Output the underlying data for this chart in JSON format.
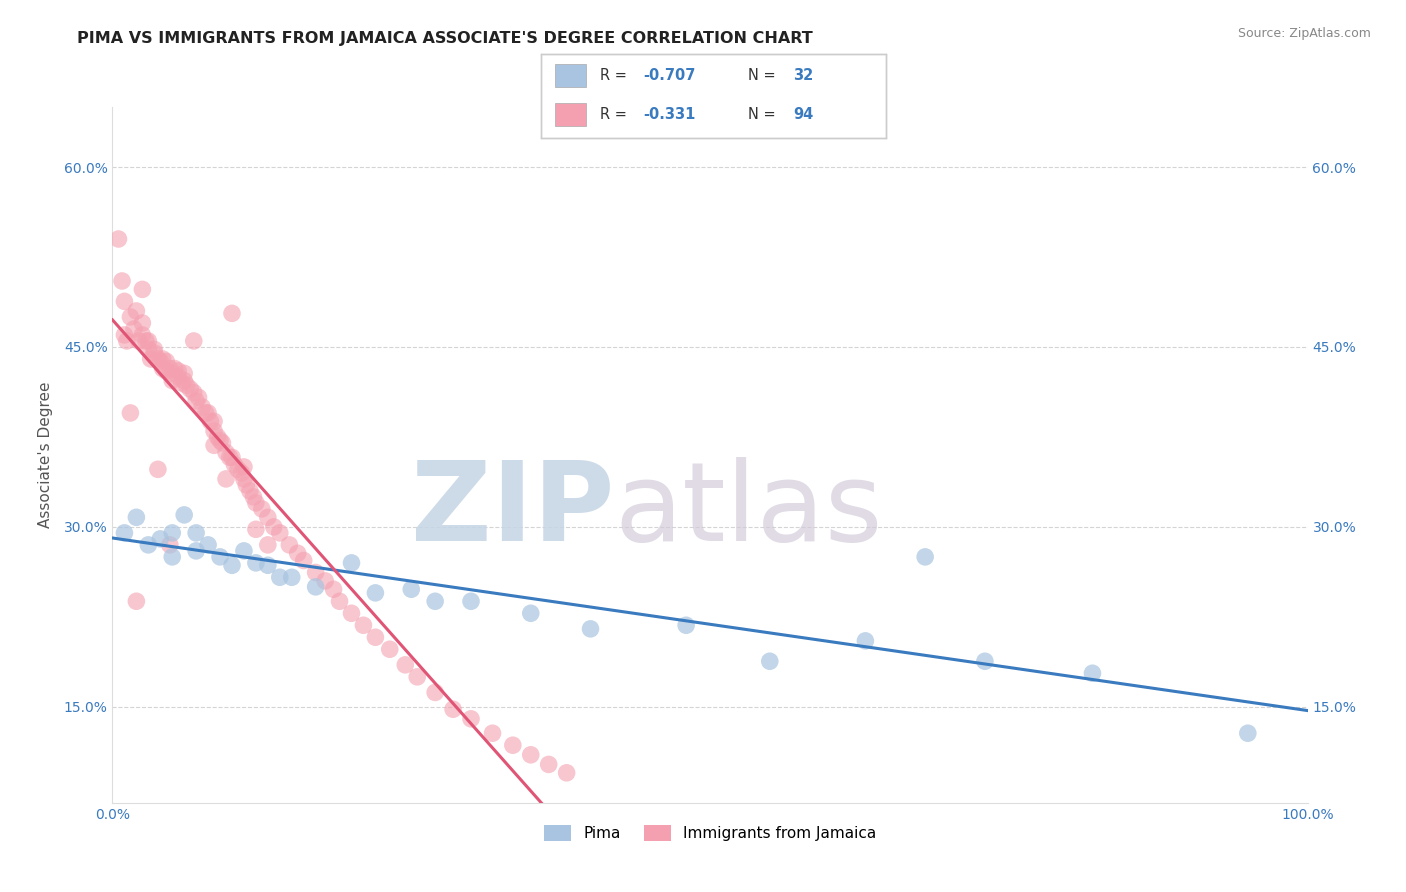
{
  "title": "PIMA VS IMMIGRANTS FROM JAMAICA ASSOCIATE'S DEGREE CORRELATION CHART",
  "source": "Source: ZipAtlas.com",
  "xlabel": "",
  "ylabel": "Associate's Degree",
  "legend_label1": "Pima",
  "legend_label2": "Immigrants from Jamaica",
  "R1": -0.707,
  "N1": 32,
  "R2": -0.331,
  "N2": 94,
  "color1": "#a8c4e0",
  "color2": "#f4a0b0",
  "line_color1": "#3a7abf",
  "line_color2": "#e05575",
  "dashed_color": "#ccaaaa",
  "watermark_zip": "ZIP",
  "watermark_atlas": "atlas",
  "watermark_color": "#d0dce8",
  "xlim": [
    0.0,
    1.0
  ],
  "ylim": [
    0.07,
    0.65
  ],
  "x_ticks": [
    0.0,
    0.2,
    0.4,
    0.6,
    0.8,
    1.0
  ],
  "x_tick_labels": [
    "0.0%",
    "",
    "",
    "",
    "",
    "100.0%"
  ],
  "y_ticks": [
    0.15,
    0.3,
    0.45,
    0.6
  ],
  "y_tick_labels": [
    "15.0%",
    "30.0%",
    "45.0%",
    "60.0%"
  ],
  "bg_color": "#ffffff",
  "grid_color": "#d0d0d0",
  "title_color": "#222222",
  "axis_label_color": "#555555",
  "tick_color": "#3a7abf",
  "source_color": "#888888",
  "pima_x": [
    0.01,
    0.02,
    0.03,
    0.04,
    0.05,
    0.05,
    0.06,
    0.07,
    0.07,
    0.08,
    0.09,
    0.1,
    0.11,
    0.12,
    0.13,
    0.14,
    0.15,
    0.17,
    0.2,
    0.22,
    0.25,
    0.27,
    0.3,
    0.35,
    0.4,
    0.48,
    0.55,
    0.63,
    0.68,
    0.73,
    0.82,
    0.95
  ],
  "pima_y": [
    0.295,
    0.308,
    0.285,
    0.29,
    0.295,
    0.275,
    0.31,
    0.295,
    0.28,
    0.285,
    0.275,
    0.268,
    0.28,
    0.27,
    0.268,
    0.258,
    0.258,
    0.25,
    0.27,
    0.245,
    0.248,
    0.238,
    0.238,
    0.228,
    0.215,
    0.218,
    0.188,
    0.205,
    0.275,
    0.188,
    0.178,
    0.128
  ],
  "jamaica_x": [
    0.005,
    0.008,
    0.01,
    0.012,
    0.015,
    0.018,
    0.02,
    0.022,
    0.025,
    0.025,
    0.028,
    0.03,
    0.03,
    0.032,
    0.035,
    0.035,
    0.038,
    0.04,
    0.042,
    0.042,
    0.045,
    0.045,
    0.048,
    0.05,
    0.05,
    0.052,
    0.055,
    0.055,
    0.058,
    0.06,
    0.06,
    0.062,
    0.065,
    0.068,
    0.07,
    0.072,
    0.075,
    0.078,
    0.08,
    0.082,
    0.085,
    0.085,
    0.088,
    0.09,
    0.092,
    0.095,
    0.098,
    0.1,
    0.102,
    0.105,
    0.108,
    0.11,
    0.112,
    0.115,
    0.118,
    0.12,
    0.125,
    0.13,
    0.135,
    0.14,
    0.148,
    0.155,
    0.16,
    0.17,
    0.178,
    0.185,
    0.19,
    0.2,
    0.21,
    0.22,
    0.232,
    0.245,
    0.255,
    0.27,
    0.285,
    0.3,
    0.318,
    0.335,
    0.35,
    0.365,
    0.38,
    0.01,
    0.02,
    0.068,
    0.085,
    0.095,
    0.1,
    0.11,
    0.12,
    0.13,
    0.015,
    0.025,
    0.038,
    0.048
  ],
  "jamaica_y": [
    0.54,
    0.505,
    0.46,
    0.455,
    0.475,
    0.465,
    0.48,
    0.455,
    0.46,
    0.47,
    0.455,
    0.455,
    0.448,
    0.44,
    0.448,
    0.445,
    0.44,
    0.438,
    0.432,
    0.44,
    0.438,
    0.43,
    0.432,
    0.428,
    0.422,
    0.432,
    0.43,
    0.425,
    0.42,
    0.422,
    0.428,
    0.418,
    0.415,
    0.412,
    0.405,
    0.408,
    0.4,
    0.395,
    0.395,
    0.388,
    0.38,
    0.388,
    0.375,
    0.372,
    0.37,
    0.362,
    0.358,
    0.358,
    0.352,
    0.348,
    0.345,
    0.34,
    0.335,
    0.33,
    0.325,
    0.32,
    0.315,
    0.308,
    0.3,
    0.295,
    0.285,
    0.278,
    0.272,
    0.262,
    0.255,
    0.248,
    0.238,
    0.228,
    0.218,
    0.208,
    0.198,
    0.185,
    0.175,
    0.162,
    0.148,
    0.14,
    0.128,
    0.118,
    0.11,
    0.102,
    0.095,
    0.488,
    0.238,
    0.455,
    0.368,
    0.34,
    0.478,
    0.35,
    0.298,
    0.285,
    0.395,
    0.498,
    0.348,
    0.285
  ]
}
